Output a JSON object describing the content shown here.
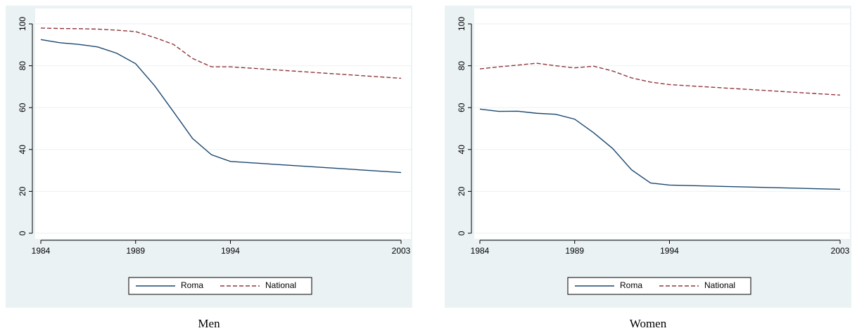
{
  "chart_data": [
    {
      "type": "line",
      "title": "Men",
      "x": [
        1984,
        1985,
        1986,
        1987,
        1988,
        1989,
        1990,
        1991,
        1992,
        1993,
        1994,
        2003
      ],
      "series": [
        {
          "name": "Roma",
          "color": "#1a476f",
          "dash": false,
          "values": [
            92.5,
            91,
            90.2,
            89,
            86,
            81,
            70.5,
            58,
            45.3,
            37.5,
            34.3,
            29
          ]
        },
        {
          "name": "National",
          "color": "#90353b",
          "dash": true,
          "values": [
            98,
            97.8,
            97.7,
            97.5,
            97,
            96.3,
            93.5,
            90.2,
            83.5,
            79.5,
            79.5,
            74
          ]
        }
      ],
      "xlim": [
        1984,
        2003
      ],
      "xticks": [
        1984,
        1989,
        1994,
        2003
      ],
      "ylim": [
        0,
        100
      ],
      "yticks": [
        0,
        20,
        40,
        60,
        80,
        100
      ],
      "grid": true,
      "legend": "bottom"
    },
    {
      "type": "line",
      "title": "Women",
      "x": [
        1984,
        1985,
        1986,
        1987,
        1988,
        1989,
        1990,
        1991,
        1992,
        1993,
        1994,
        2003
      ],
      "series": [
        {
          "name": "Roma",
          "color": "#1a476f",
          "dash": false,
          "values": [
            59.3,
            58.2,
            58.3,
            57.3,
            56.8,
            54.5,
            48,
            40.5,
            30.3,
            24,
            23,
            21
          ]
        },
        {
          "name": "National",
          "color": "#90353b",
          "dash": true,
          "values": [
            78.5,
            79.5,
            80.3,
            81.2,
            80,
            79,
            79.8,
            77.5,
            74.2,
            72.2,
            71,
            66
          ]
        }
      ],
      "xlim": [
        1984,
        2003
      ],
      "xticks": [
        1984,
        1989,
        1994,
        2003
      ],
      "ylim": [
        0,
        100
      ],
      "yticks": [
        0,
        20,
        40,
        60,
        80,
        100
      ],
      "grid": true,
      "legend": "bottom"
    }
  ]
}
